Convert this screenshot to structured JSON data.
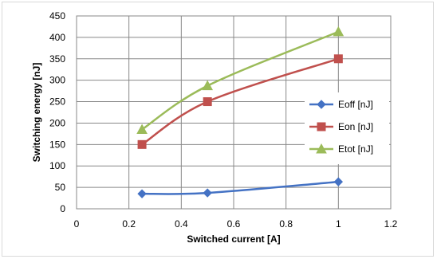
{
  "chart_data": {
    "type": "line",
    "xlabel": "Switched current [A]",
    "ylabel": "Switching energy [nJ]",
    "xlim": [
      0,
      1.2
    ],
    "ylim": [
      0,
      450
    ],
    "x_ticks": [
      "0",
      "0.2",
      "0.4",
      "0.6",
      "0.8",
      "1",
      "1.2"
    ],
    "y_ticks": [
      "0",
      "50",
      "100",
      "150",
      "200",
      "250",
      "300",
      "350",
      "400",
      "450"
    ],
    "grid": true,
    "legend_position": "right",
    "series": [
      {
        "name": "Eoff [nJ]",
        "color": "#4472c4",
        "marker": "diamond",
        "x": [
          0.25,
          0.5,
          1.0
        ],
        "values": [
          35,
          37,
          63
        ]
      },
      {
        "name": "Eon [nJ]",
        "color": "#c0504d",
        "marker": "square",
        "x": [
          0.25,
          0.5,
          1.0
        ],
        "values": [
          150,
          250,
          350
        ]
      },
      {
        "name": "Etot [nJ]",
        "color": "#9bbb59",
        "marker": "triangle",
        "x": [
          0.25,
          0.5,
          1.0
        ],
        "values": [
          185,
          287,
          413
        ]
      }
    ]
  }
}
